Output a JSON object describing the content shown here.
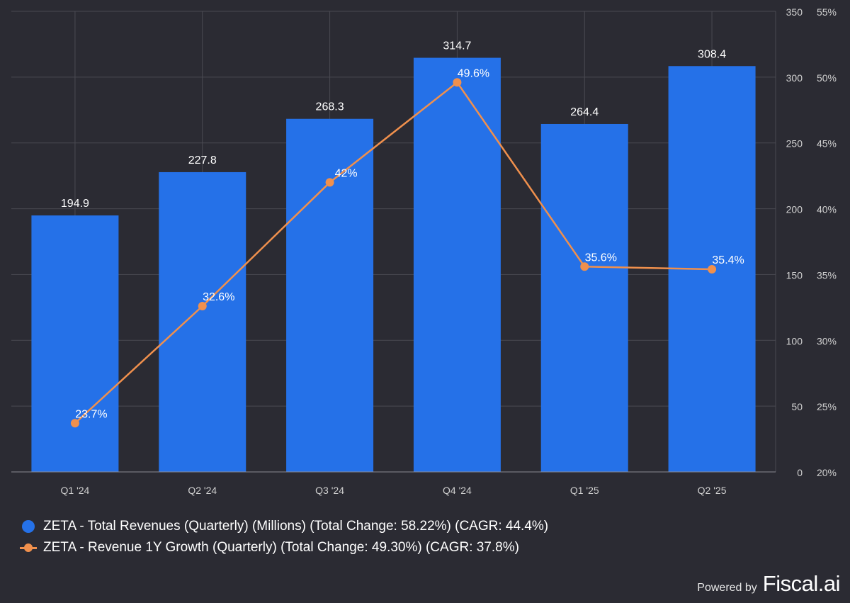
{
  "chart_data": {
    "type": "bar",
    "categories": [
      "Q1 '24",
      "Q2 '24",
      "Q3 '24",
      "Q4 '24",
      "Q1 '25",
      "Q2 '25"
    ],
    "series": [
      {
        "name": "ZETA - Total Revenues (Quarterly) (Millions) (Total Change: 58.22%) (CAGR: 44.4%)",
        "type": "bar",
        "axis": "left",
        "values": [
          194.9,
          227.8,
          268.3,
          314.7,
          264.4,
          308.4
        ],
        "labels": [
          "194.9",
          "227.8",
          "268.3",
          "314.7",
          "264.4",
          "308.4"
        ]
      },
      {
        "name": "ZETA - Revenue 1Y Growth (Quarterly) (Total Change: 49.30%) (CAGR: 37.8%)",
        "type": "line",
        "axis": "right",
        "values": [
          23.7,
          32.6,
          42.0,
          49.6,
          35.6,
          35.4
        ],
        "labels": [
          "23.7%",
          "32.6%",
          "42%",
          "49.6%",
          "35.6%",
          "35.4%"
        ]
      }
    ],
    "y_left": {
      "ylim": [
        0,
        350
      ],
      "ticks": [
        "0",
        "50",
        "100",
        "150",
        "200",
        "250",
        "300",
        "350"
      ]
    },
    "y_right": {
      "ylim": [
        20,
        55
      ],
      "ticks": [
        "20%",
        "25%",
        "30%",
        "35%",
        "40%",
        "45%",
        "50%",
        "55%"
      ]
    },
    "grid": true,
    "legend_position": "bottom-left",
    "colors": {
      "bar": "#2571e8",
      "line": "#f0904d",
      "background": "#2b2b33",
      "grid": "#4a4a52"
    }
  },
  "footer": {
    "powered_by": "Powered by",
    "brand": "Fiscal.ai"
  }
}
